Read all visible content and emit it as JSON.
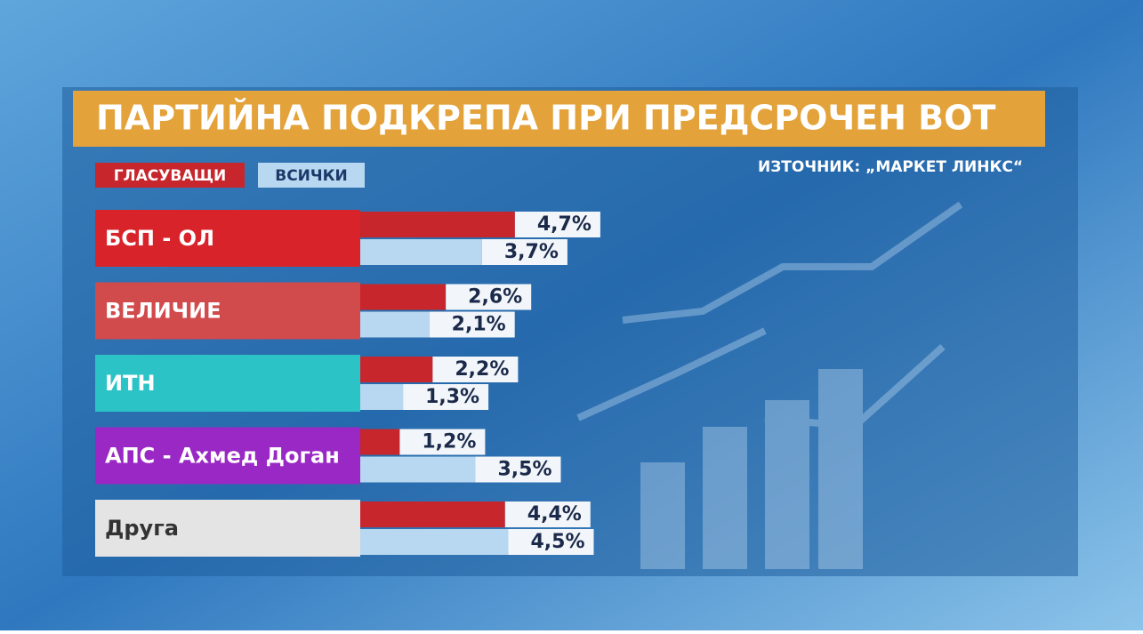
{
  "chart_data": {
    "type": "bar",
    "title": "ПАРТИЙНА ПОДКРЕПА ПРИ ПРЕДСРОЧЕН ВОТ",
    "source": "ИЗТОЧНИК: „МАРКЕТ ЛИНКС“",
    "categories": [
      "БСП - ОЛ",
      "ВЕЛИЧИЕ",
      "ИТН",
      "АПС - Ахмед Доган",
      "Друга"
    ],
    "category_colors": [
      "#d8232a",
      "#d14a4c",
      "#2cc3c6",
      "#9a28c4",
      "#e4e4e4"
    ],
    "category_text_colors": [
      "#ffffff",
      "#ffffff",
      "#ffffff",
      "#ffffff",
      "#333333"
    ],
    "series": [
      {
        "name": "ГЛАСУВАЩИ",
        "color": "#c7262c",
        "values": [
          4.7,
          2.6,
          2.2,
          1.2,
          4.4
        ],
        "value_labels": [
          "4,7%",
          "2,6%",
          "2,2%",
          "1,2%",
          "4,4%"
        ]
      },
      {
        "name": "ВСИЧКИ",
        "color": "#b8d7f0",
        "values": [
          3.7,
          2.1,
          1.3,
          3.5,
          4.5
        ],
        "value_labels": [
          "3,7%",
          "2,1%",
          "1,3%",
          "3,5%",
          "4,5%"
        ]
      }
    ]
  }
}
